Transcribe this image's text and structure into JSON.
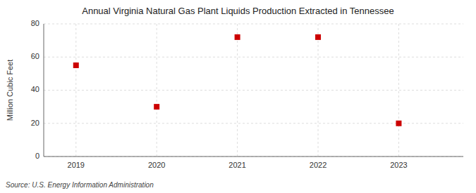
{
  "chart_data": {
    "type": "scatter",
    "title": "Annual Virginia Natural Gas Plant Liquids Production Extracted in Tennessee",
    "y_label": "Million Cubic Feet",
    "source": "Source: U.S. Energy Information Administration",
    "x": [
      2019,
      2020,
      2021,
      2022,
      2023
    ],
    "values": [
      55,
      30,
      72,
      72,
      20
    ],
    "color": "#cc0000",
    "marker": "square",
    "xlim": [
      2018.6,
      2023.8
    ],
    "xticks": [
      2019,
      2020,
      2021,
      2022,
      2023
    ],
    "ylim": [
      0,
      80
    ],
    "yticks": [
      0,
      20,
      40,
      60,
      80
    ],
    "grid": true
  }
}
